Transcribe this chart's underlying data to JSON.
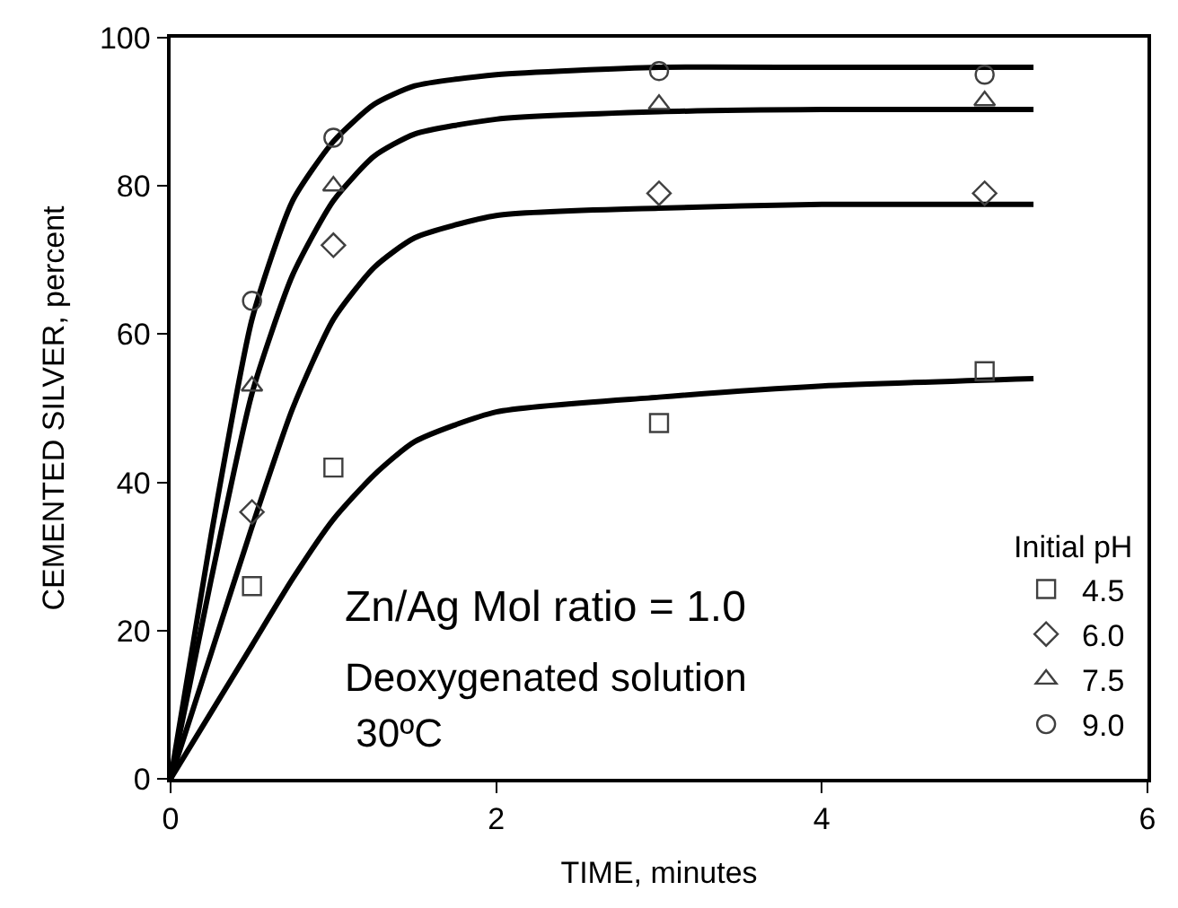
{
  "chart_data": {
    "type": "scatter",
    "xlabel": "TIME, minutes",
    "ylabel": "CEMENTED SILVER, percent",
    "legend_title": "Initial pH",
    "legend": "bottom right",
    "grid": false,
    "xlim": [
      0,
      6
    ],
    "xticks": [
      0,
      2,
      4,
      6
    ],
    "ylim": [
      0,
      100
    ],
    "yticks": [
      0,
      20,
      40,
      60,
      80,
      100
    ],
    "annotations": [
      "Zn/Ag Mol ratio = 1.0",
      "Deoxygenated solution",
      " 30ºC"
    ],
    "series": [
      {
        "name": "4.5",
        "marker": "square",
        "color": "#404040",
        "x": [
          0.5,
          1,
          3,
          5
        ],
        "values": [
          26,
          42,
          48,
          55
        ]
      },
      {
        "name": "6.0",
        "marker": "diamond",
        "color": "#404040",
        "x": [
          0.5,
          1,
          3,
          5
        ],
        "values": [
          36,
          72,
          79,
          79
        ]
      },
      {
        "name": "7.5",
        "marker": "triangle",
        "color": "#404040",
        "x": [
          0.5,
          1,
          3,
          5
        ],
        "values": [
          53,
          80,
          91,
          91.5
        ]
      },
      {
        "name": "9.0",
        "marker": "circle",
        "color": "#404040",
        "x": [
          0.5,
          1,
          3,
          5
        ],
        "values": [
          64.5,
          86.5,
          95.5,
          95
        ]
      },
      {
        "type": "line",
        "color": "#000000",
        "x": [
          0,
          0.25,
          0.5,
          0.75,
          1,
          1.25,
          1.5,
          2,
          3,
          4,
          5.3
        ],
        "values": [
          0,
          9,
          18,
          27,
          35,
          41,
          45.5,
          49.5,
          51.5,
          53,
          54
        ]
      },
      {
        "type": "line",
        "color": "#000000",
        "x": [
          0,
          0.25,
          0.5,
          0.75,
          1,
          1.25,
          1.5,
          2,
          3,
          4,
          5.3
        ],
        "values": [
          0,
          17,
          34,
          50,
          62,
          69,
          73,
          76,
          77,
          77.5,
          77.5
        ]
      },
      {
        "type": "line",
        "color": "#000000",
        "x": [
          0,
          0.25,
          0.5,
          0.75,
          1,
          1.25,
          1.5,
          2,
          3,
          4,
          5.3
        ],
        "values": [
          0,
          27,
          52,
          68,
          78,
          84,
          87,
          89,
          90,
          90.3,
          90.3
        ]
      },
      {
        "type": "line",
        "color": "#000000",
        "x": [
          0,
          0.25,
          0.5,
          0.75,
          1,
          1.25,
          1.5,
          2,
          3,
          4,
          5.3
        ],
        "values": [
          0,
          33,
          62,
          78,
          86,
          91,
          93.5,
          95,
          96,
          96,
          96
        ]
      }
    ]
  }
}
